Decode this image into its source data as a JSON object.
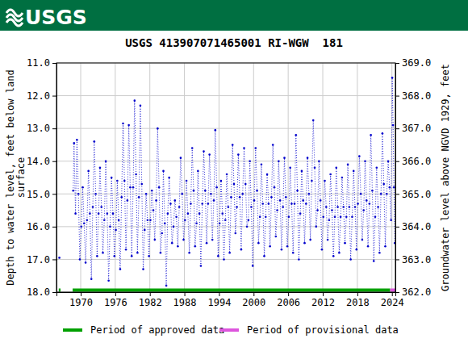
{
  "header": {
    "logo": "USGS"
  },
  "chart_data": {
    "type": "line",
    "title": "USGS 413907071465001 RI-WGW  181",
    "ylabel": [
      "Depth to water level, feet below land",
      "surface"
    ],
    "y2label": "Groundwater level above NGVD 1929, feet",
    "xlim": [
      1965.8,
      2024.6
    ],
    "xticks": [
      1970,
      1976,
      1982,
      1988,
      1994,
      2000,
      2006,
      2012,
      2018,
      2024
    ],
    "ylim": [
      11,
      18
    ],
    "yticks": [
      {
        "value": 11,
        "label": "11.0"
      },
      {
        "value": 12,
        "label": "12.0"
      },
      {
        "value": 13,
        "label": "13.0"
      },
      {
        "value": 14,
        "label": "14.0"
      },
      {
        "value": 15,
        "label": "15.0"
      },
      {
        "value": 16,
        "label": "16.0"
      },
      {
        "value": 17,
        "label": "17.0"
      },
      {
        "value": 18,
        "label": "18.0"
      }
    ],
    "y2lim": [
      369,
      362
    ],
    "y2ticks": [
      {
        "value": 369,
        "label": "369.0"
      },
      {
        "value": 368,
        "label": "368.0"
      },
      {
        "value": 367,
        "label": "367.0"
      },
      {
        "value": 366,
        "label": "366.0"
      },
      {
        "value": 365,
        "label": "365.0"
      },
      {
        "value": 364,
        "label": "364.0"
      },
      {
        "value": 363,
        "label": "363.0"
      },
      {
        "value": 362,
        "label": "362.0"
      }
    ],
    "grid": true,
    "x": [
      1966.3,
      1967.5,
      1968.7,
      1968.85,
      1969.1,
      1969.35,
      1969.6,
      1969.85,
      1970.1,
      1970.35,
      1970.6,
      1970.85,
      1971.1,
      1971.35,
      1971.6,
      1971.85,
      1972.1,
      1972.35,
      1972.6,
      1972.85,
      1973.1,
      1973.35,
      1973.6,
      1973.85,
      1974.1,
      1974.35,
      1974.6,
      1974.85,
      1975.1,
      1975.35,
      1975.6,
      1975.85,
      1976.1,
      1976.35,
      1976.6,
      1976.85,
      1977.1,
      1977.35,
      1977.6,
      1977.85,
      1978.1,
      1978.35,
      1978.6,
      1978.85,
      1979.1,
      1979.35,
      1979.6,
      1979.85,
      1980.1,
      1980.35,
      1980.6,
      1980.85,
      1981.1,
      1981.35,
      1981.6,
      1981.85,
      1982.1,
      1982.35,
      1982.6,
      1982.85,
      1983.1,
      1983.35,
      1983.6,
      1983.85,
      1984.1,
      1984.35,
      1984.6,
      1984.85,
      1985.1,
      1985.35,
      1985.6,
      1985.85,
      1986.1,
      1986.35,
      1986.6,
      1986.85,
      1987.1,
      1987.35,
      1987.6,
      1987.85,
      1988.1,
      1988.35,
      1988.6,
      1988.85,
      1989.1,
      1989.35,
      1989.6,
      1989.85,
      1990.1,
      1990.35,
      1990.6,
      1990.85,
      1991.1,
      1991.35,
      1991.6,
      1991.85,
      1992.1,
      1992.35,
      1992.6,
      1992.85,
      1993.1,
      1993.35,
      1993.6,
      1993.85,
      1994.1,
      1994.35,
      1994.6,
      1994.85,
      1995.1,
      1995.35,
      1995.6,
      1995.85,
      1996.1,
      1996.35,
      1996.6,
      1996.85,
      1997.1,
      1997.35,
      1997.6,
      1997.85,
      1998.1,
      1998.35,
      1998.6,
      1998.85,
      1999.1,
      1999.35,
      1999.6,
      1999.85,
      2000.1,
      2000.35,
      2000.6,
      2000.85,
      2001.1,
      2001.35,
      2001.6,
      2001.85,
      2002.1,
      2002.35,
      2002.6,
      2002.85,
      2003.1,
      2003.35,
      2003.6,
      2003.85,
      2004.1,
      2004.35,
      2004.6,
      2004.85,
      2005.1,
      2005.35,
      2005.6,
      2005.85,
      2006.1,
      2006.35,
      2006.6,
      2006.85,
      2007.1,
      2007.35,
      2007.6,
      2007.85,
      2008.1,
      2008.35,
      2008.6,
      2008.85,
      2009.1,
      2009.35,
      2009.6,
      2009.85,
      2010.1,
      2010.35,
      2010.6,
      2010.85,
      2011.1,
      2011.35,
      2011.6,
      2011.85,
      2012.1,
      2012.35,
      2012.6,
      2012.85,
      2013.1,
      2013.35,
      2013.6,
      2013.85,
      2014.1,
      2014.35,
      2014.6,
      2014.85,
      2015.1,
      2015.35,
      2015.6,
      2015.85,
      2016.1,
      2016.35,
      2016.6,
      2016.85,
      2017.1,
      2017.35,
      2017.6,
      2017.85,
      2018.1,
      2018.35,
      2018.6,
      2018.85,
      2019.1,
      2019.35,
      2019.6,
      2019.85,
      2020.1,
      2020.35,
      2020.6,
      2020.85,
      2021.1,
      2021.35,
      2021.6,
      2021.85,
      2022.1,
      2022.35,
      2022.6,
      2022.85,
      2023.1,
      2023.35,
      2023.6,
      2023.85,
      2024.05,
      2024.2,
      2024.35,
      2024.5
    ],
    "series": [
      {
        "color": "#0000cc",
        "marker": "dot",
        "line_style": "dotted",
        "values": [
          16.95,
          null,
          14.9,
          13.45,
          15.6,
          13.35,
          15.0,
          17.0,
          16.0,
          14.8,
          15.9,
          17.1,
          15.8,
          14.3,
          15.6,
          17.6,
          15.4,
          13.4,
          15.0,
          16.9,
          15.6,
          14.2,
          15.4,
          16.8,
          15.8,
          14.0,
          15.6,
          17.65,
          16.0,
          14.5,
          15.6,
          16.9,
          16.1,
          14.6,
          15.8,
          17.3,
          15.1,
          12.85,
          14.6,
          16.7,
          15.2,
          12.9,
          14.8,
          16.9,
          14.8,
          12.15,
          14.4,
          16.8,
          15.1,
          12.3,
          14.7,
          17.3,
          16.1,
          15.0,
          15.8,
          16.9,
          15.8,
          14.9,
          15.5,
          16.4,
          15.2,
          13.0,
          14.8,
          16.8,
          16.2,
          14.3,
          15.9,
          17.8,
          15.6,
          14.5,
          15.3,
          16.5,
          16.0,
          15.2,
          15.7,
          16.6,
          15.4,
          13.9,
          15.0,
          16.4,
          15.8,
          14.6,
          15.6,
          16.8,
          15.3,
          13.6,
          14.9,
          16.6,
          15.9,
          14.3,
          15.6,
          17.2,
          15.3,
          13.7,
          14.9,
          16.5,
          15.3,
          13.8,
          15.0,
          16.4,
          15.2,
          13.05,
          14.8,
          16.9,
          15.9,
          14.6,
          15.6,
          17.0,
          15.8,
          14.4,
          15.4,
          16.8,
          15.1,
          13.5,
          14.7,
          16.2,
          15.4,
          13.8,
          15.1,
          16.7,
          15.0,
          13.6,
          14.7,
          16.0,
          15.8,
          14.0,
          15.4,
          17.2,
          15.2,
          13.6,
          14.9,
          16.5,
          15.7,
          14.1,
          15.3,
          16.9,
          15.7,
          14.4,
          15.3,
          16.6,
          15.1,
          13.5,
          14.8,
          16.3,
          15.5,
          14.0,
          15.2,
          16.7,
          15.4,
          13.9,
          15.1,
          16.6,
          15.7,
          14.2,
          15.3,
          16.8,
          15.3,
          13.2,
          14.9,
          17.0,
          15.6,
          14.3,
          15.2,
          16.5,
          15.3,
          13.9,
          15.0,
          16.4,
          14.6,
          12.75,
          14.2,
          16.0,
          15.5,
          14.0,
          15.2,
          16.7,
          15.7,
          14.6,
          15.4,
          16.4,
          15.8,
          14.4,
          15.5,
          16.9,
          15.7,
          14.2,
          15.4,
          16.8,
          15.7,
          14.5,
          15.4,
          16.5,
          15.7,
          14.1,
          15.4,
          17.0,
          15.7,
          14.3,
          15.4,
          16.7,
          15.3,
          13.85,
          15.0,
          16.4,
          15.5,
          14.0,
          15.2,
          16.6,
          15.3,
          13.2,
          14.9,
          17.05,
          15.7,
          14.2,
          15.4,
          16.8,
          15.0,
          13.15,
          14.7,
          16.6,
          15.0,
          14.0,
          14.8,
          15.8,
          11.45,
          12.9,
          14.8,
          16.5
        ]
      }
    ],
    "periods": [
      {
        "name": "Period of approved data",
        "color": "#00a000",
        "ranges": [
          [
            1966.2,
            1966.5
          ],
          [
            1968.6,
            2023.7
          ]
        ]
      },
      {
        "name": "Period of provisional data",
        "color": "#dd55dd",
        "ranges": [
          [
            2023.7,
            2024.6
          ]
        ]
      }
    ]
  }
}
